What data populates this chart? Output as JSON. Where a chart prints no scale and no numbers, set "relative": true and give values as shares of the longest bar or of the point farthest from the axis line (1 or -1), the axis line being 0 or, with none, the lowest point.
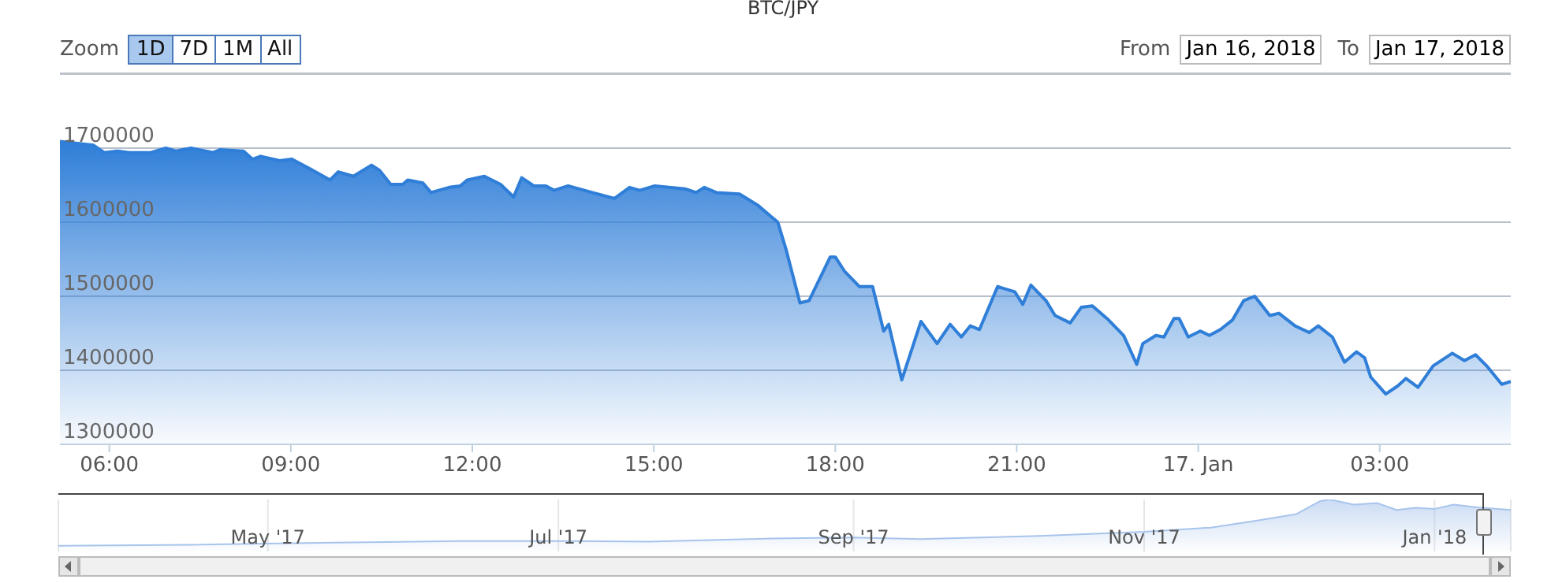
{
  "chart_data": [
    {
      "type": "area",
      "title": "BTC/JPY",
      "color": "#2f7ed8",
      "grid": "y",
      "legend": false,
      "marker": "none",
      "line_style": "solid",
      "annotations": [
        "Zoom",
        "1D",
        "7D",
        "1M",
        "All",
        "From",
        "Jan 16, 2018",
        "To",
        "Jan 17, 2018"
      ],
      "x": [
        "2018-01-16T05:11",
        "2018-01-16T05:44",
        "2018-01-16T05:55",
        "2018-01-16T06:08",
        "2018-01-16T06:20",
        "2018-01-16T06:41",
        "2018-01-16T06:56",
        "2018-01-16T07:06",
        "2018-01-16T07:21",
        "2018-01-16T07:43",
        "2018-01-16T07:50",
        "2018-01-16T08:13",
        "2018-01-16T08:22",
        "2018-01-16T08:30",
        "2018-01-16T08:49",
        "2018-01-16T09:01",
        "2018-01-16T09:19",
        "2018-01-16T09:39",
        "2018-01-16T09:47",
        "2018-01-16T10:02",
        "2018-01-16T10:20",
        "2018-01-16T10:28",
        "2018-01-16T10:39",
        "2018-01-16T10:51",
        "2018-01-16T10:56",
        "2018-01-16T11:11",
        "2018-01-16T11:19",
        "2018-01-16T11:37",
        "2018-01-16T11:48",
        "2018-01-16T11:55",
        "2018-01-16T12:12",
        "2018-01-16T12:28",
        "2018-01-16T12:41",
        "2018-01-16T12:49",
        "2018-01-16T13:01",
        "2018-01-16T13:13",
        "2018-01-16T13:21",
        "2018-01-16T13:35",
        "2018-01-16T13:59",
        "2018-01-16T14:21",
        "2018-01-16T14:36",
        "2018-01-16T14:46",
        "2018-01-16T15:01",
        "2018-01-16T15:31",
        "2018-01-16T15:42",
        "2018-01-16T15:50",
        "2018-01-16T16:02",
        "2018-01-16T16:25",
        "2018-01-16T16:43",
        "2018-01-16T16:56",
        "2018-01-16T17:03",
        "2018-01-16T17:11",
        "2018-01-16T17:25",
        "2018-01-16T17:34",
        "2018-01-16T17:55",
        "2018-01-16T18:00",
        "2018-01-16T18:09",
        "2018-01-16T18:24",
        "2018-01-16T18:37",
        "2018-01-16T18:48",
        "2018-01-16T18:53",
        "2018-01-16T19:06",
        "2018-01-16T19:25",
        "2018-01-16T19:41",
        "2018-01-16T19:54",
        "2018-01-16T20:05",
        "2018-01-16T20:14",
        "2018-01-16T20:23",
        "2018-01-16T20:41",
        "2018-01-16T20:58",
        "2018-01-16T21:06",
        "2018-01-16T21:14",
        "2018-01-16T21:29",
        "2018-01-16T21:38",
        "2018-01-16T21:53",
        "2018-01-16T22:04",
        "2018-01-16T22:15",
        "2018-01-16T22:31",
        "2018-01-16T22:46",
        "2018-01-16T22:59",
        "2018-01-16T23:05",
        "2018-01-16T23:18",
        "2018-01-16T23:26",
        "2018-01-16T23:36",
        "2018-01-16T23:41",
        "2018-01-16T23:50",
        "2018-01-17T00:02",
        "2018-01-17T00:11",
        "2018-01-17T00:22",
        "2018-01-17T00:34",
        "2018-01-17T00:45",
        "2018-01-17T00:56",
        "2018-01-17T01:11",
        "2018-01-17T01:20",
        "2018-01-17T01:36",
        "2018-01-17T01:50",
        "2018-01-17T01:59",
        "2018-01-17T02:13",
        "2018-01-17T02:25",
        "2018-01-17T02:37",
        "2018-01-17T02:45",
        "2018-01-17T02:51",
        "2018-01-17T03:06",
        "2018-01-17T03:18",
        "2018-01-17T03:26",
        "2018-01-17T03:38",
        "2018-01-17T03:53",
        "2018-01-17T04:12",
        "2018-01-17T04:24",
        "2018-01-17T04:35",
        "2018-01-17T04:46",
        "2018-01-17T05:01",
        "2018-01-17T05:10"
      ],
      "values": [
        1709000,
        1704000,
        1694000,
        1696000,
        1694000,
        1694000,
        1700000,
        1696000,
        1700000,
        1694000,
        1698000,
        1696000,
        1685000,
        1689000,
        1683000,
        1685000,
        1672000,
        1657000,
        1668000,
        1662000,
        1677000,
        1670000,
        1651000,
        1651000,
        1657000,
        1653000,
        1640000,
        1647000,
        1649000,
        1657000,
        1662000,
        1651000,
        1634000,
        1660000,
        1649000,
        1649000,
        1643000,
        1649000,
        1640000,
        1632000,
        1647000,
        1643000,
        1649000,
        1645000,
        1640000,
        1647000,
        1640000,
        1638000,
        1623000,
        1608000,
        1600000,
        1564000,
        1491000,
        1494000,
        1553000,
        1553000,
        1534000,
        1513000,
        1513000,
        1453000,
        1462000,
        1387000,
        1466000,
        1436000,
        1462000,
        1445000,
        1460000,
        1455000,
        1513000,
        1506000,
        1489000,
        1515000,
        1494000,
        1474000,
        1464000,
        1485000,
        1487000,
        1468000,
        1447000,
        1408000,
        1436000,
        1447000,
        1445000,
        1470000,
        1470000,
        1445000,
        1453000,
        1447000,
        1455000,
        1468000,
        1494000,
        1500000,
        1474000,
        1477000,
        1460000,
        1451000,
        1460000,
        1445000,
        1411000,
        1425000,
        1417000,
        1391000,
        1368000,
        1379000,
        1389000,
        1377000,
        1406000,
        1423000,
        1413000,
        1421000,
        1406000,
        1381000,
        1385000
      ],
      "xlim": [
        "2018-01-16T05:11",
        "2018-01-17T05:10"
      ],
      "xticks": [
        {
          "value": "2018-01-16T06:00",
          "label": "06:00"
        },
        {
          "value": "2018-01-16T09:00",
          "label": "09:00"
        },
        {
          "value": "2018-01-16T12:00",
          "label": "12:00"
        },
        {
          "value": "2018-01-16T15:00",
          "label": "15:00"
        },
        {
          "value": "2018-01-16T18:00",
          "label": "18:00"
        },
        {
          "value": "2018-01-16T21:00",
          "label": "21:00"
        },
        {
          "value": "2018-01-17T00:00",
          "label": "17. Jan"
        },
        {
          "value": "2018-01-17T03:00",
          "label": "03:00"
        }
      ],
      "ylim": [
        1300000,
        1800000
      ],
      "yticks": [
        1300000,
        1400000,
        1500000,
        1600000,
        1700000
      ]
    },
    {
      "type": "area",
      "relative": true,
      "color": "#a8c4ec",
      "grid": "x",
      "legend": false,
      "marker": "none",
      "tick_labels": "x",
      "x": [
        "2017-03-18",
        "2017-04-15",
        "2017-05-15",
        "2017-06-10",
        "2017-07-01",
        "2017-07-20",
        "2017-08-15",
        "2017-09-01",
        "2017-09-15",
        "2017-10-10",
        "2017-11-01",
        "2017-11-15",
        "2017-11-25",
        "2017-12-03",
        "2017-12-08",
        "2017-12-10",
        "2017-12-15",
        "2017-12-20",
        "2017-12-24",
        "2017-12-28",
        "2018-01-01",
        "2018-01-05",
        "2018-01-10",
        "2018-01-17"
      ],
      "values": [
        0.11,
        0.13,
        0.17,
        0.2,
        0.2,
        0.19,
        0.25,
        0.27,
        0.24,
        0.3,
        0.38,
        0.46,
        0.6,
        0.72,
        0.97,
        1,
        0.9,
        0.93,
        0.8,
        0.84,
        0.82,
        0.9,
        0.85,
        0.8
      ],
      "xlim": [
        "2017-03-18",
        "2018-01-17"
      ],
      "xticks": [
        {
          "value": "2017-05-01",
          "label": "May '17"
        },
        {
          "value": "2017-07-01",
          "label": "Jul '17"
        },
        {
          "value": "2017-09-01",
          "label": "Sep '17"
        },
        {
          "value": "2017-11-01",
          "label": "Nov '17"
        },
        {
          "value": "2018-01-01",
          "label": "Jan '18"
        }
      ]
    }
  ]
}
